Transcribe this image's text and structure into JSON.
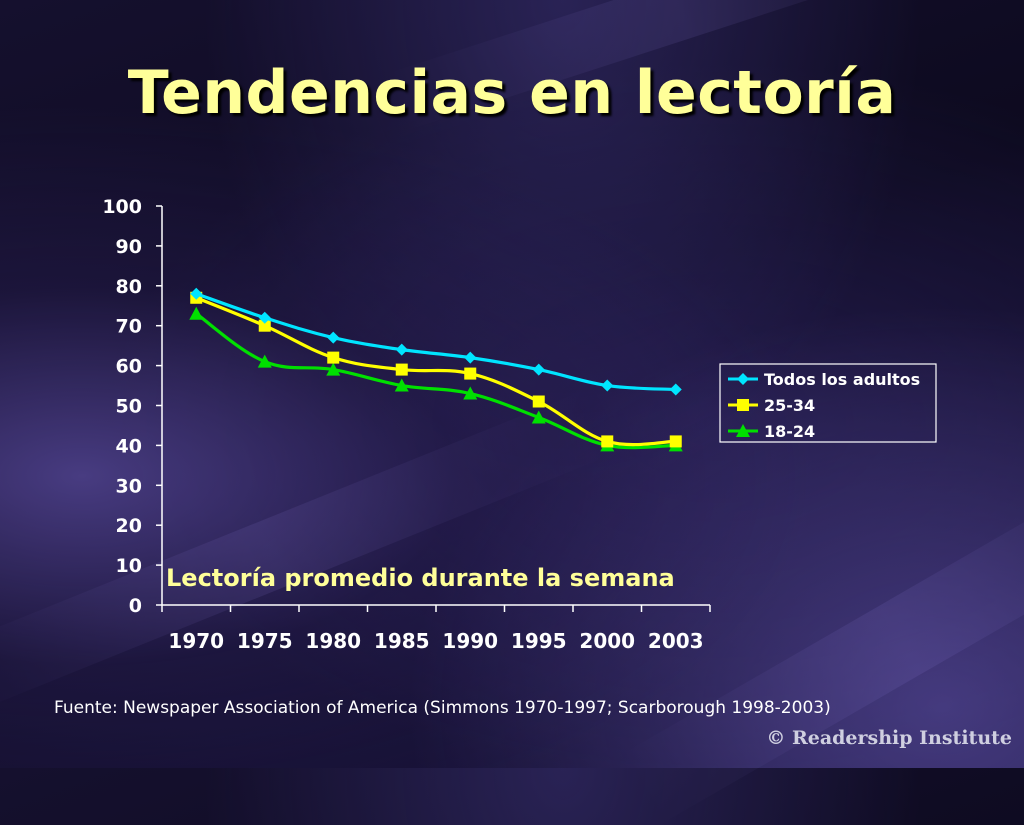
{
  "slide": {
    "title": "Tendencias en lectoría",
    "source": "Fuente: Newspaper Association of America (Simmons 1970-1997; Scarborough 1998-2003)",
    "copyright": "© Readership Institute"
  },
  "colors": {
    "background": "#120e28",
    "title": "#ffff99",
    "axis": "#ffffff",
    "annotation": "#ffff99",
    "series": [
      "#00e5ff",
      "#ffff00",
      "#00e000"
    ]
  },
  "chart_data": {
    "type": "line",
    "title": "",
    "annotation": "Lectoría promedio durante la semana",
    "xlabel": "",
    "ylabel": "",
    "categories": [
      "1970",
      "1975",
      "1980",
      "1985",
      "1990",
      "1995",
      "2000",
      "2003"
    ],
    "ylim": [
      0,
      100
    ],
    "yticks": [
      0,
      10,
      20,
      30,
      40,
      50,
      60,
      70,
      80,
      90,
      100
    ],
    "grid": false,
    "legend": "right",
    "series": [
      {
        "name": "Todos los adultos",
        "marker": "diamond-icon",
        "values": [
          78,
          72,
          67,
          64,
          62,
          59,
          55,
          54
        ]
      },
      {
        "name": "25-34",
        "marker": "square-icon",
        "values": [
          77,
          70,
          62,
          59,
          58,
          51,
          41,
          41
        ]
      },
      {
        "name": "18-24",
        "marker": "triangle-icon",
        "values": [
          73,
          61,
          59,
          55,
          53,
          47,
          40,
          40
        ]
      }
    ]
  }
}
